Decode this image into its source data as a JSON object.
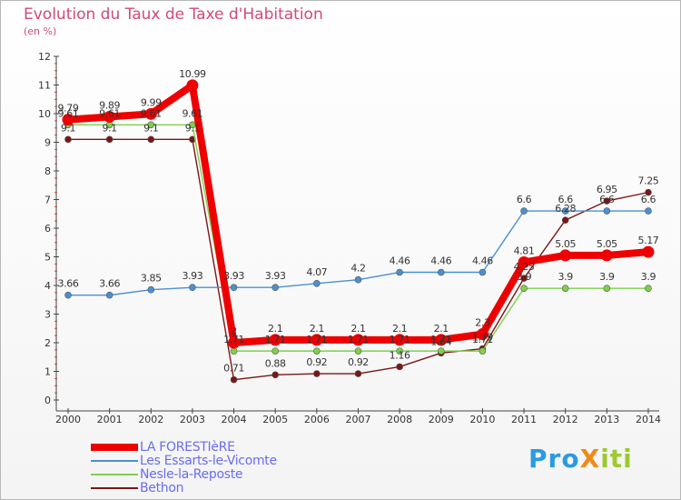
{
  "header": {
    "title": "Evolution du Taux de Taxe d'Habitation",
    "subtitle": "(en %)"
  },
  "logo": {
    "text": "ProXiti"
  },
  "chart_data": {
    "type": "line",
    "title": "Evolution du Taux de Taxe d'Habitation",
    "ylabel": "(en %)",
    "xlabel": "",
    "x": [
      "2000",
      "2001",
      "2002",
      "2003",
      "2004",
      "2005",
      "2006",
      "2007",
      "2008",
      "2009",
      "2010",
      "2011",
      "2012",
      "2013",
      "2014"
    ],
    "ylim": [
      0,
      12
    ],
    "yticks": [
      0,
      1,
      2,
      3,
      4,
      5,
      6,
      7,
      8,
      9,
      10,
      11,
      12
    ],
    "grid": false,
    "legend_position": "bottom-left",
    "series": [
      {
        "name": "LA FORESTIèRE",
        "color": "#ee0000",
        "values": [
          9.79,
          9.89,
          9.99,
          10.99,
          2,
          2.1,
          2.1,
          2.1,
          2.1,
          2.1,
          2.3,
          4.81,
          5.05,
          5.05,
          5.17
        ],
        "labels": [
          "9.79",
          "9.89",
          "9.99",
          "10.99",
          "2",
          "2.1",
          "2.1",
          "2.1",
          "2.1",
          "2.1",
          "2.3",
          "4.81",
          "5.05",
          "5.05",
          "5.17"
        ]
      },
      {
        "name": "Les Essarts-le-Vicomte",
        "color": "#4a90d0",
        "values": [
          3.66,
          3.66,
          3.85,
          3.93,
          3.93,
          3.93,
          4.07,
          4.2,
          4.46,
          4.46,
          4.46,
          6.6,
          6.6,
          6.6,
          6.6
        ],
        "labels": [
          "3.66",
          "3.66",
          "3.85",
          "3.93",
          "3.93",
          "3.93",
          "4.07",
          "4.2",
          "4.46",
          "4.46",
          "4.46",
          "6.6",
          "6.6",
          "6.6",
          "6.6"
        ]
      },
      {
        "name": "Nesle-la-Reposte",
        "color": "#7ed04a",
        "values": [
          9.61,
          9.61,
          9.61,
          9.61,
          1.71,
          1.71,
          1.71,
          1.71,
          1.71,
          1.71,
          1.71,
          3.9,
          3.9,
          3.9,
          3.9
        ],
        "labels": [
          "9.61",
          "9.61",
          "9.61",
          "9.61",
          "1.71",
          "1.71",
          "1.71",
          "1.71",
          "1.71",
          "1.71",
          "1.71",
          "3.9",
          "3.9",
          "3.9",
          "3.9"
        ]
      },
      {
        "name": "Bethon",
        "color": "#7a1616",
        "values": [
          9.1,
          9.1,
          9.1,
          9.1,
          0.71,
          0.88,
          0.92,
          0.92,
          1.16,
          1.64,
          1.79,
          4.25,
          6.28,
          6.95,
          7.25
        ],
        "labels": [
          "9.1",
          "9.1",
          "9.1",
          "9.1",
          "0.71",
          "0.88",
          "0.92",
          "0.92",
          "1.16",
          "1.64",
          "1.79",
          "4.25",
          "6.28",
          "6.95",
          "7.25"
        ]
      }
    ]
  }
}
